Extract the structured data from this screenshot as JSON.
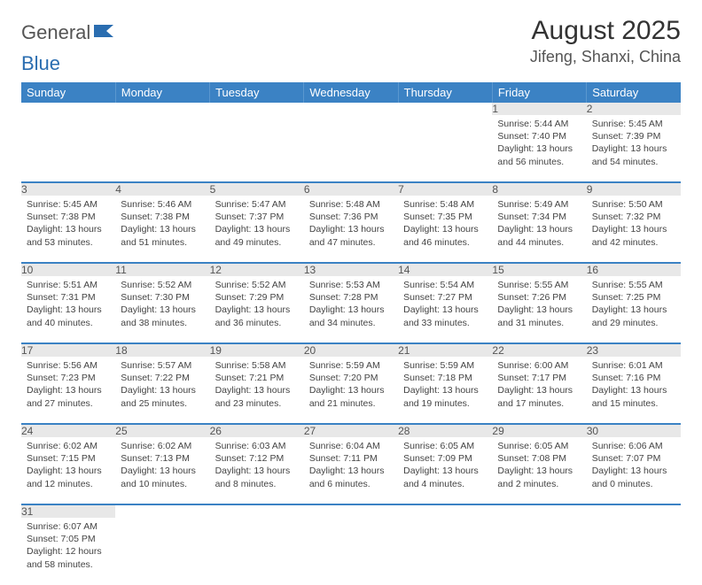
{
  "logo": {
    "part1": "General",
    "part2": "Blue"
  },
  "title": "August 2025",
  "location": "Jifeng, Shanxi, China",
  "colors": {
    "header_bg": "#3b82c4",
    "header_text": "#ffffff",
    "daynum_bg": "#e8e8e8",
    "row_border": "#3b82c4",
    "background": "#ffffff",
    "text": "#333333"
  },
  "weekdays": [
    "Sunday",
    "Monday",
    "Tuesday",
    "Wednesday",
    "Thursday",
    "Friday",
    "Saturday"
  ],
  "weeks": [
    {
      "nums": [
        "",
        "",
        "",
        "",
        "",
        "1",
        "2"
      ],
      "cells": [
        null,
        null,
        null,
        null,
        null,
        {
          "sunrise": "Sunrise: 5:44 AM",
          "sunset": "Sunset: 7:40 PM",
          "daylight1": "Daylight: 13 hours",
          "daylight2": "and 56 minutes."
        },
        {
          "sunrise": "Sunrise: 5:45 AM",
          "sunset": "Sunset: 7:39 PM",
          "daylight1": "Daylight: 13 hours",
          "daylight2": "and 54 minutes."
        }
      ]
    },
    {
      "nums": [
        "3",
        "4",
        "5",
        "6",
        "7",
        "8",
        "9"
      ],
      "cells": [
        {
          "sunrise": "Sunrise: 5:45 AM",
          "sunset": "Sunset: 7:38 PM",
          "daylight1": "Daylight: 13 hours",
          "daylight2": "and 53 minutes."
        },
        {
          "sunrise": "Sunrise: 5:46 AM",
          "sunset": "Sunset: 7:38 PM",
          "daylight1": "Daylight: 13 hours",
          "daylight2": "and 51 minutes."
        },
        {
          "sunrise": "Sunrise: 5:47 AM",
          "sunset": "Sunset: 7:37 PM",
          "daylight1": "Daylight: 13 hours",
          "daylight2": "and 49 minutes."
        },
        {
          "sunrise": "Sunrise: 5:48 AM",
          "sunset": "Sunset: 7:36 PM",
          "daylight1": "Daylight: 13 hours",
          "daylight2": "and 47 minutes."
        },
        {
          "sunrise": "Sunrise: 5:48 AM",
          "sunset": "Sunset: 7:35 PM",
          "daylight1": "Daylight: 13 hours",
          "daylight2": "and 46 minutes."
        },
        {
          "sunrise": "Sunrise: 5:49 AM",
          "sunset": "Sunset: 7:34 PM",
          "daylight1": "Daylight: 13 hours",
          "daylight2": "and 44 minutes."
        },
        {
          "sunrise": "Sunrise: 5:50 AM",
          "sunset": "Sunset: 7:32 PM",
          "daylight1": "Daylight: 13 hours",
          "daylight2": "and 42 minutes."
        }
      ]
    },
    {
      "nums": [
        "10",
        "11",
        "12",
        "13",
        "14",
        "15",
        "16"
      ],
      "cells": [
        {
          "sunrise": "Sunrise: 5:51 AM",
          "sunset": "Sunset: 7:31 PM",
          "daylight1": "Daylight: 13 hours",
          "daylight2": "and 40 minutes."
        },
        {
          "sunrise": "Sunrise: 5:52 AM",
          "sunset": "Sunset: 7:30 PM",
          "daylight1": "Daylight: 13 hours",
          "daylight2": "and 38 minutes."
        },
        {
          "sunrise": "Sunrise: 5:52 AM",
          "sunset": "Sunset: 7:29 PM",
          "daylight1": "Daylight: 13 hours",
          "daylight2": "and 36 minutes."
        },
        {
          "sunrise": "Sunrise: 5:53 AM",
          "sunset": "Sunset: 7:28 PM",
          "daylight1": "Daylight: 13 hours",
          "daylight2": "and 34 minutes."
        },
        {
          "sunrise": "Sunrise: 5:54 AM",
          "sunset": "Sunset: 7:27 PM",
          "daylight1": "Daylight: 13 hours",
          "daylight2": "and 33 minutes."
        },
        {
          "sunrise": "Sunrise: 5:55 AM",
          "sunset": "Sunset: 7:26 PM",
          "daylight1": "Daylight: 13 hours",
          "daylight2": "and 31 minutes."
        },
        {
          "sunrise": "Sunrise: 5:55 AM",
          "sunset": "Sunset: 7:25 PM",
          "daylight1": "Daylight: 13 hours",
          "daylight2": "and 29 minutes."
        }
      ]
    },
    {
      "nums": [
        "17",
        "18",
        "19",
        "20",
        "21",
        "22",
        "23"
      ],
      "cells": [
        {
          "sunrise": "Sunrise: 5:56 AM",
          "sunset": "Sunset: 7:23 PM",
          "daylight1": "Daylight: 13 hours",
          "daylight2": "and 27 minutes."
        },
        {
          "sunrise": "Sunrise: 5:57 AM",
          "sunset": "Sunset: 7:22 PM",
          "daylight1": "Daylight: 13 hours",
          "daylight2": "and 25 minutes."
        },
        {
          "sunrise": "Sunrise: 5:58 AM",
          "sunset": "Sunset: 7:21 PM",
          "daylight1": "Daylight: 13 hours",
          "daylight2": "and 23 minutes."
        },
        {
          "sunrise": "Sunrise: 5:59 AM",
          "sunset": "Sunset: 7:20 PM",
          "daylight1": "Daylight: 13 hours",
          "daylight2": "and 21 minutes."
        },
        {
          "sunrise": "Sunrise: 5:59 AM",
          "sunset": "Sunset: 7:18 PM",
          "daylight1": "Daylight: 13 hours",
          "daylight2": "and 19 minutes."
        },
        {
          "sunrise": "Sunrise: 6:00 AM",
          "sunset": "Sunset: 7:17 PM",
          "daylight1": "Daylight: 13 hours",
          "daylight2": "and 17 minutes."
        },
        {
          "sunrise": "Sunrise: 6:01 AM",
          "sunset": "Sunset: 7:16 PM",
          "daylight1": "Daylight: 13 hours",
          "daylight2": "and 15 minutes."
        }
      ]
    },
    {
      "nums": [
        "24",
        "25",
        "26",
        "27",
        "28",
        "29",
        "30"
      ],
      "cells": [
        {
          "sunrise": "Sunrise: 6:02 AM",
          "sunset": "Sunset: 7:15 PM",
          "daylight1": "Daylight: 13 hours",
          "daylight2": "and 12 minutes."
        },
        {
          "sunrise": "Sunrise: 6:02 AM",
          "sunset": "Sunset: 7:13 PM",
          "daylight1": "Daylight: 13 hours",
          "daylight2": "and 10 minutes."
        },
        {
          "sunrise": "Sunrise: 6:03 AM",
          "sunset": "Sunset: 7:12 PM",
          "daylight1": "Daylight: 13 hours",
          "daylight2": "and 8 minutes."
        },
        {
          "sunrise": "Sunrise: 6:04 AM",
          "sunset": "Sunset: 7:11 PM",
          "daylight1": "Daylight: 13 hours",
          "daylight2": "and 6 minutes."
        },
        {
          "sunrise": "Sunrise: 6:05 AM",
          "sunset": "Sunset: 7:09 PM",
          "daylight1": "Daylight: 13 hours",
          "daylight2": "and 4 minutes."
        },
        {
          "sunrise": "Sunrise: 6:05 AM",
          "sunset": "Sunset: 7:08 PM",
          "daylight1": "Daylight: 13 hours",
          "daylight2": "and 2 minutes."
        },
        {
          "sunrise": "Sunrise: 6:06 AM",
          "sunset": "Sunset: 7:07 PM",
          "daylight1": "Daylight: 13 hours",
          "daylight2": "and 0 minutes."
        }
      ]
    },
    {
      "nums": [
        "31",
        "",
        "",
        "",
        "",
        "",
        ""
      ],
      "cells": [
        {
          "sunrise": "Sunrise: 6:07 AM",
          "sunset": "Sunset: 7:05 PM",
          "daylight1": "Daylight: 12 hours",
          "daylight2": "and 58 minutes."
        },
        null,
        null,
        null,
        null,
        null,
        null
      ]
    }
  ]
}
